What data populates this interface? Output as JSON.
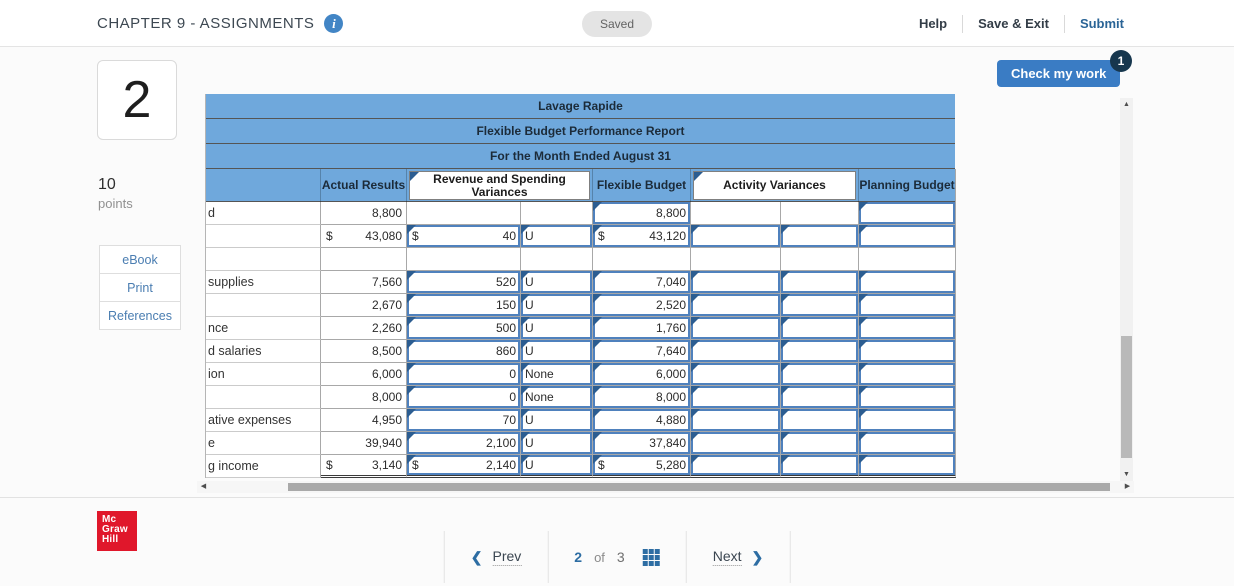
{
  "header": {
    "title": "CHAPTER 9 - ASSIGNMENTS",
    "saved": "Saved",
    "help": "Help",
    "save_exit": "Save & Exit",
    "submit": "Submit"
  },
  "question": {
    "number": "2",
    "points_value": "10",
    "points_label": "points",
    "tools": [
      "eBook",
      "Print",
      "References"
    ],
    "check_my_work": "Check my work",
    "check_badge": "1"
  },
  "table": {
    "titles": [
      "Lavage Rapide",
      "Flexible Budget Performance Report",
      "For the Month Ended August 31"
    ],
    "col_headers": {
      "actual": "Actual Results",
      "rev_spend": "Revenue and Spending Variances",
      "flexible": "Flexible Budget",
      "activity": "Activity Variances",
      "planning": "Planning Budget"
    },
    "rows": [
      {
        "label": "d",
        "cells": [
          {
            "v": "8,800"
          },
          {
            "v": ""
          },
          {
            "v": ""
          },
          {
            "v": "8,800",
            "input": true
          },
          {
            "v": ""
          },
          {
            "v": ""
          },
          {
            "v": "",
            "input": true
          }
        ]
      },
      {
        "label": "",
        "cells": [
          {
            "d": "$",
            "v": "43,080"
          },
          {
            "d": "$",
            "v": "40",
            "input": true
          },
          {
            "v": "U",
            "input": true
          },
          {
            "d": "$",
            "v": "43,120",
            "input": true
          },
          {
            "v": "",
            "input": true
          },
          {
            "v": "",
            "input": true
          },
          {
            "v": "",
            "input": true
          }
        ]
      },
      {
        "label": "",
        "cells": [
          {
            "v": ""
          },
          {
            "v": ""
          },
          {
            "v": ""
          },
          {
            "v": ""
          },
          {
            "v": ""
          },
          {
            "v": ""
          },
          {
            "v": ""
          }
        ]
      },
      {
        "label": "supplies",
        "cells": [
          {
            "v": "7,560"
          },
          {
            "v": "520",
            "input": true
          },
          {
            "v": "U",
            "input": true
          },
          {
            "v": "7,040",
            "input": true
          },
          {
            "v": "",
            "input": true
          },
          {
            "v": "",
            "input": true
          },
          {
            "v": "",
            "input": true
          }
        ]
      },
      {
        "label": "",
        "cells": [
          {
            "v": "2,670"
          },
          {
            "v": "150",
            "input": true
          },
          {
            "v": "U",
            "input": true
          },
          {
            "v": "2,520",
            "input": true
          },
          {
            "v": "",
            "input": true
          },
          {
            "v": "",
            "input": true
          },
          {
            "v": "",
            "input": true
          }
        ]
      },
      {
        "label": "nce",
        "cells": [
          {
            "v": "2,260"
          },
          {
            "v": "500",
            "input": true
          },
          {
            "v": "U",
            "input": true
          },
          {
            "v": "1,760",
            "input": true
          },
          {
            "v": "",
            "input": true
          },
          {
            "v": "",
            "input": true
          },
          {
            "v": "",
            "input": true
          }
        ]
      },
      {
        "label": "d salaries",
        "cells": [
          {
            "v": "8,500"
          },
          {
            "v": "860",
            "input": true
          },
          {
            "v": "U",
            "input": true
          },
          {
            "v": "7,640",
            "input": true
          },
          {
            "v": "",
            "input": true
          },
          {
            "v": "",
            "input": true
          },
          {
            "v": "",
            "input": true
          }
        ]
      },
      {
        "label": "ion",
        "cells": [
          {
            "v": "6,000"
          },
          {
            "v": "0",
            "input": true
          },
          {
            "v": "None",
            "input": true
          },
          {
            "v": "6,000",
            "input": true
          },
          {
            "v": "",
            "input": true
          },
          {
            "v": "",
            "input": true
          },
          {
            "v": "",
            "input": true
          }
        ]
      },
      {
        "label": "",
        "cells": [
          {
            "v": "8,000"
          },
          {
            "v": "0",
            "input": true
          },
          {
            "v": "None",
            "input": true
          },
          {
            "v": "8,000",
            "input": true
          },
          {
            "v": "",
            "input": true
          },
          {
            "v": "",
            "input": true
          },
          {
            "v": "",
            "input": true
          }
        ]
      },
      {
        "label": "ative expenses",
        "cells": [
          {
            "v": "4,950"
          },
          {
            "v": "70",
            "input": true
          },
          {
            "v": "U",
            "input": true
          },
          {
            "v": "4,880",
            "input": true
          },
          {
            "v": "",
            "input": true
          },
          {
            "v": "",
            "input": true
          },
          {
            "v": "",
            "input": true
          }
        ]
      },
      {
        "label": "e",
        "cells": [
          {
            "v": "39,940"
          },
          {
            "v": "2,100",
            "input": true
          },
          {
            "v": "U",
            "input": true
          },
          {
            "v": "37,840",
            "input": true
          },
          {
            "v": "",
            "input": true
          },
          {
            "v": "",
            "input": true
          },
          {
            "v": "",
            "input": true
          }
        ]
      },
      {
        "label": "g income",
        "last": true,
        "cells": [
          {
            "d": "$",
            "v": "3,140"
          },
          {
            "d": "$",
            "v": "2,140",
            "input": true
          },
          {
            "v": "U",
            "input": true
          },
          {
            "d": "$",
            "v": "5,280",
            "input": true
          },
          {
            "v": "",
            "input": true
          },
          {
            "v": "",
            "input": true
          },
          {
            "v": "",
            "input": true
          }
        ]
      }
    ]
  },
  "footer": {
    "prev": "Prev",
    "page_current": "2",
    "of_label": "of",
    "page_total": "3",
    "next": "Next",
    "logo_lines": [
      "Mc",
      "Graw",
      "Hill"
    ]
  },
  "colors": {
    "table_header_blue": "#6fa8dc",
    "input_border": "#4f81bd",
    "marker_navy": "#2c5d91",
    "accent_blue": "#2d6da3",
    "button_blue": "#3a7cc4",
    "badge_navy": "#17374e",
    "logo_red": "#e0172b"
  }
}
